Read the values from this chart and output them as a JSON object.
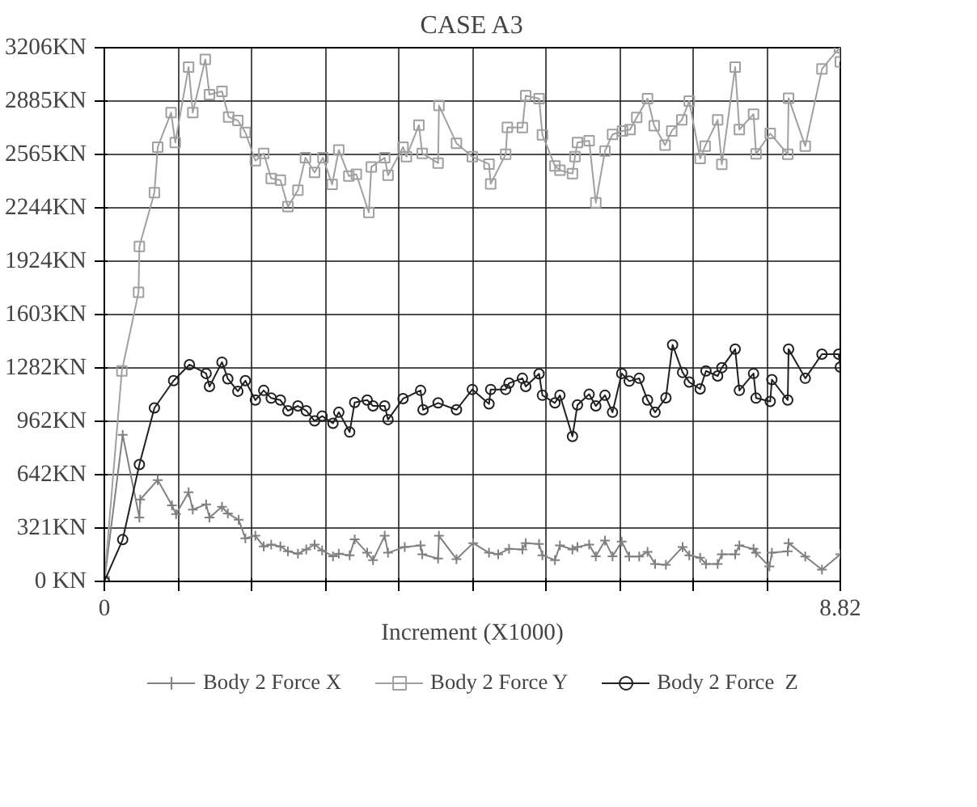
{
  "chart_data": {
    "type": "line",
    "title": "CASE A3",
    "xlabel": "Increment (X1000)",
    "xlim": [
      0,
      8.82
    ],
    "ylim": [
      0,
      3206
    ],
    "xticks": [
      0,
      {
        "value": 0.882,
        "label": null
      },
      {
        "value": 1.764,
        "label": null
      },
      {
        "value": 2.646,
        "label": null
      },
      {
        "value": 3.528,
        "label": null
      },
      {
        "value": 4.41,
        "label": null
      },
      {
        "value": 5.292,
        "label": null
      },
      {
        "value": 6.174,
        "label": null
      },
      {
        "value": 7.056,
        "label": null
      },
      {
        "value": 7.938,
        "label": null
      },
      8.82
    ],
    "yticks": [
      {
        "value": 0,
        "label": "0 KN"
      },
      {
        "value": 321,
        "label": "321KN"
      },
      {
        "value": 642,
        "label": "642KN"
      },
      {
        "value": 962,
        "label": "962KN"
      },
      {
        "value": 1282,
        "label": "1282KN"
      },
      {
        "value": 1603,
        "label": "1603KN"
      },
      {
        "value": 1924,
        "label": "1924KN"
      },
      {
        "value": 2244,
        "label": "2244KN"
      },
      {
        "value": 2565,
        "label": "2565KN"
      },
      {
        "value": 2885,
        "label": "2885KN"
      },
      {
        "value": 3206,
        "label": "3206KN"
      }
    ],
    "grid": true,
    "legend": "bottom",
    "series": [
      {
        "name": "Body 2 Force X",
        "color": "#808080",
        "marker": "cross",
        "x": [
          0,
          0.22,
          0.42,
          0.43,
          0.64,
          0.81,
          0.86,
          1.01,
          1.06,
          1.22,
          1.26,
          1.41,
          1.48,
          1.61,
          1.69,
          1.81,
          1.91,
          2.0,
          2.11,
          2.2,
          2.32,
          2.42,
          2.52,
          2.61,
          2.74,
          2.81,
          2.94,
          3.0,
          3.15,
          3.22,
          3.36,
          3.4,
          3.6,
          3.79,
          3.81,
          4.0,
          4.01,
          4.22,
          4.42,
          4.61,
          4.72,
          4.85,
          5.01,
          5.05,
          5.21,
          5.25,
          5.4,
          5.46,
          5.61,
          5.67,
          5.81,
          5.89,
          6.0,
          6.09,
          6.2,
          6.29,
          6.41,
          6.51,
          6.6,
          6.73,
          6.93,
          7.01,
          7.14,
          7.21,
          7.35,
          7.4,
          7.56,
          7.61,
          7.78,
          7.81,
          7.97,
          8.0,
          8.19,
          8.2,
          8.4,
          8.6,
          8.82
        ],
        "values": [
          0,
          880,
          384,
          492,
          609,
          457,
          404,
          536,
          431,
          463,
          384,
          448,
          408,
          370,
          259,
          274,
          210,
          221,
          210,
          181,
          166,
          192,
          221,
          186,
          151,
          166,
          157,
          253,
          172,
          128,
          274,
          172,
          207,
          216,
          163,
          137,
          274,
          134,
          230,
          172,
          163,
          195,
          192,
          230,
          225,
          157,
          128,
          216,
          192,
          207,
          221,
          151,
          245,
          151,
          239,
          149,
          149,
          177,
          105,
          99,
          207,
          157,
          142,
          105,
          105,
          163,
          163,
          216,
          195,
          172,
          90,
          172,
          181,
          230,
          149,
          70,
          163
        ]
      },
      {
        "name": "Body 2 Force Y",
        "color": "#a0a0a0",
        "marker": "square",
        "x": [
          0,
          0.21,
          0.41,
          0.42,
          0.6,
          0.64,
          0.8,
          0.85,
          1.01,
          1.06,
          1.21,
          1.26,
          1.41,
          1.49,
          1.6,
          1.69,
          1.81,
          1.91,
          2.0,
          2.11,
          2.2,
          2.32,
          2.41,
          2.52,
          2.62,
          2.73,
          2.81,
          2.93,
          3.02,
          3.17,
          3.2,
          3.36,
          3.4,
          3.58,
          3.62,
          3.77,
          3.81,
          4.0,
          4.01,
          4.22,
          4.41,
          4.61,
          4.63,
          4.81,
          4.83,
          5.01,
          5.05,
          5.21,
          5.25,
          5.4,
          5.46,
          5.61,
          5.64,
          5.67,
          5.81,
          5.89,
          6.0,
          6.09,
          6.21,
          6.3,
          6.38,
          6.51,
          6.59,
          6.72,
          6.8,
          6.92,
          7.01,
          7.14,
          7.2,
          7.35,
          7.4,
          7.56,
          7.61,
          7.78,
          7.81,
          7.98,
          8.19,
          8.2,
          8.4,
          8.6,
          8.81,
          8.82
        ],
        "values": [
          0,
          1264,
          1736,
          2012,
          2335,
          2609,
          2816,
          2636,
          3090,
          2816,
          3136,
          2924,
          2944,
          2789,
          2769,
          2697,
          2527,
          2571,
          2420,
          2411,
          2251,
          2350,
          2545,
          2457,
          2545,
          2385,
          2592,
          2435,
          2446,
          2216,
          2490,
          2545,
          2440,
          2609,
          2551,
          2741,
          2571,
          2513,
          2859,
          2632,
          2551,
          2507,
          2388,
          2566,
          2728,
          2726,
          2918,
          2900,
          2682,
          2496,
          2470,
          2449,
          2551,
          2636,
          2647,
          2274,
          2586,
          2685,
          2706,
          2714,
          2787,
          2900,
          2737,
          2621,
          2706,
          2772,
          2885,
          2540,
          2615,
          2772,
          2505,
          3090,
          2714,
          2807,
          2568,
          2691,
          2566,
          2903,
          2615,
          3078,
          3206,
          3121
        ]
      },
      {
        "name": "Body 2 Force  Z",
        "color": "#202020",
        "marker": "circle",
        "x": [
          0,
          0.22,
          0.42,
          0.6,
          0.83,
          1.02,
          1.22,
          1.26,
          1.41,
          1.48,
          1.6,
          1.69,
          1.81,
          1.91,
          2.0,
          2.11,
          2.2,
          2.32,
          2.42,
          2.52,
          2.61,
          2.74,
          2.81,
          2.94,
          3.0,
          3.15,
          3.22,
          3.36,
          3.4,
          3.58,
          3.79,
          3.82,
          4.0,
          4.22,
          4.41,
          4.61,
          4.63,
          4.81,
          4.85,
          5.01,
          5.05,
          5.21,
          5.25,
          5.4,
          5.46,
          5.61,
          5.67,
          5.81,
          5.89,
          6.0,
          6.09,
          6.2,
          6.29,
          6.41,
          6.51,
          6.6,
          6.73,
          6.81,
          6.93,
          7.01,
          7.14,
          7.21,
          7.35,
          7.4,
          7.56,
          7.61,
          7.78,
          7.81,
          7.98,
          8.0,
          8.19,
          8.2,
          8.4,
          8.6,
          8.8,
          8.82
        ],
        "values": [
          0,
          251,
          702,
          1042,
          1206,
          1302,
          1249,
          1171,
          1317,
          1217,
          1142,
          1206,
          1089,
          1147,
          1101,
          1089,
          1025,
          1054,
          1025,
          964,
          993,
          950,
          1016,
          897,
          1075,
          1089,
          1054,
          1054,
          972,
          1098,
          1147,
          1031,
          1072,
          1031,
          1153,
          1066,
          1153,
          1153,
          1191,
          1220,
          1171,
          1247,
          1118,
          1072,
          1118,
          871,
          1060,
          1124,
          1054,
          1118,
          1016,
          1249,
          1203,
          1220,
          1089,
          1016,
          1103,
          1421,
          1255,
          1197,
          1156,
          1264,
          1234,
          1284,
          1395,
          1147,
          1249,
          1101,
          1081,
          1212,
          1089,
          1395,
          1220,
          1365,
          1365,
          1287
        ]
      }
    ]
  }
}
